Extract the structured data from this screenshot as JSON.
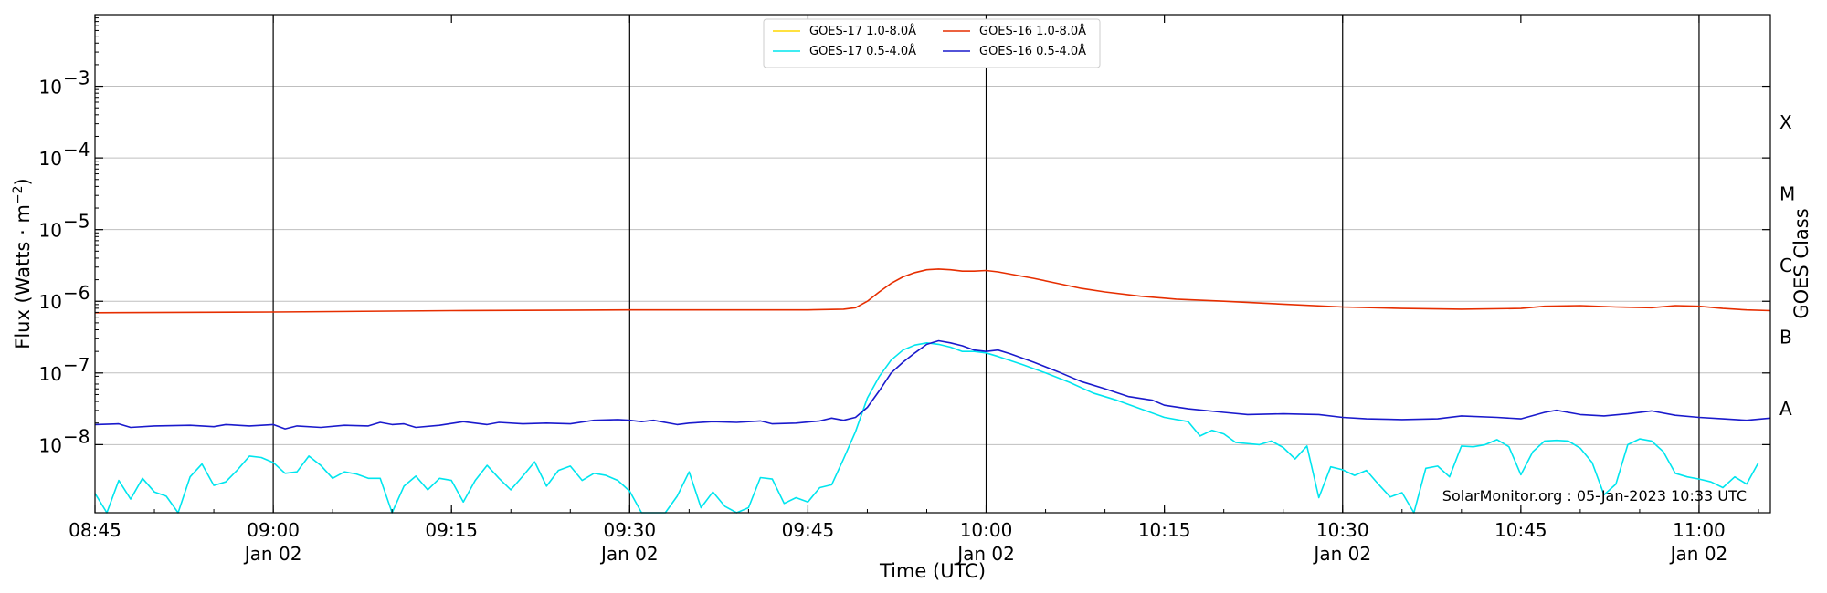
{
  "chart_data": {
    "type": "line",
    "xlabel": "Time (UTC)",
    "ylabel": "Flux (Watts · m",
    "ylabel_sup": "−2",
    "right_label": "GOES Class",
    "x_range_minutes": [
      -15,
      126
    ],
    "y_log_range_exp": [
      -8.95,
      -2.0
    ],
    "x_ticks": [
      {
        "minute": -15,
        "time": "08:45",
        "date": ""
      },
      {
        "minute": 0,
        "time": "09:00",
        "date": "Jan 02"
      },
      {
        "minute": 15,
        "time": "09:15",
        "date": ""
      },
      {
        "minute": 30,
        "time": "09:30",
        "date": "Jan 02"
      },
      {
        "minute": 45,
        "time": "09:45",
        "date": ""
      },
      {
        "minute": 60,
        "time": "10:00",
        "date": "Jan 02"
      },
      {
        "minute": 75,
        "time": "10:15",
        "date": ""
      },
      {
        "minute": 90,
        "time": "10:30",
        "date": "Jan 02"
      },
      {
        "minute": 105,
        "time": "10:45",
        "date": ""
      },
      {
        "minute": 120,
        "time": "11:00",
        "date": "Jan 02"
      }
    ],
    "vertical_lines_minutes": [
      0,
      30,
      60,
      90,
      120
    ],
    "y_ticks": [
      {
        "exp": -8,
        "base": "10",
        "sup": "−8"
      },
      {
        "exp": -7,
        "base": "10",
        "sup": "−7"
      },
      {
        "exp": -6,
        "base": "10",
        "sup": "−6"
      },
      {
        "exp": -5,
        "base": "10",
        "sup": "−5"
      },
      {
        "exp": -4,
        "base": "10",
        "sup": "−4"
      },
      {
        "exp": -3,
        "base": "10",
        "sup": "−3"
      }
    ],
    "goes_classes": [
      {
        "label": "A",
        "exp": -7.5
      },
      {
        "label": "B",
        "exp": -6.5
      },
      {
        "label": "C",
        "exp": -5.5
      },
      {
        "label": "M",
        "exp": -4.5
      },
      {
        "label": "X",
        "exp": -3.5
      }
    ],
    "legend": [
      {
        "name": "GOES-17 1.0-8.0Å",
        "color": "#ffd700"
      },
      {
        "name": "GOES-17 0.5-4.0Å",
        "color": "#00e5ee"
      },
      {
        "name": "GOES-16 1.0-8.0Å",
        "color": "#e62e00"
      },
      {
        "name": "GOES-16 0.5-4.0Å",
        "color": "#1a1acc"
      }
    ],
    "credit": "SolarMonitor.org : 05-Jan-2023 10:33 UTC",
    "series": [
      {
        "name": "GOES-16 1.0-8.0Å",
        "color": "#e62e00",
        "points": [
          [
            -15,
            -6.16
          ],
          [
            0,
            -6.15
          ],
          [
            15,
            -6.13
          ],
          [
            30,
            -6.12
          ],
          [
            45,
            -6.12
          ],
          [
            48,
            -6.11
          ],
          [
            49,
            -6.09
          ],
          [
            50,
            -6.0
          ],
          [
            51,
            -5.87
          ],
          [
            52,
            -5.75
          ],
          [
            53,
            -5.66
          ],
          [
            54,
            -5.6
          ],
          [
            55,
            -5.56
          ],
          [
            56,
            -5.55
          ],
          [
            57,
            -5.56
          ],
          [
            58,
            -5.58
          ],
          [
            59,
            -5.58
          ],
          [
            60,
            -5.57
          ],
          [
            61,
            -5.59
          ],
          [
            62,
            -5.62
          ],
          [
            64,
            -5.68
          ],
          [
            66,
            -5.75
          ],
          [
            68,
            -5.82
          ],
          [
            70,
            -5.87
          ],
          [
            73,
            -5.93
          ],
          [
            76,
            -5.97
          ],
          [
            80,
            -6.0
          ],
          [
            85,
            -6.04
          ],
          [
            90,
            -6.08
          ],
          [
            95,
            -6.1
          ],
          [
            100,
            -6.11
          ],
          [
            105,
            -6.1
          ],
          [
            107,
            -6.07
          ],
          [
            110,
            -6.06
          ],
          [
            113,
            -6.08
          ],
          [
            116,
            -6.09
          ],
          [
            118,
            -6.06
          ],
          [
            120,
            -6.07
          ],
          [
            122,
            -6.1
          ],
          [
            124,
            -6.12
          ],
          [
            126,
            -6.13
          ]
        ]
      },
      {
        "name": "GOES-16 0.5-4.0Å",
        "color": "#1a1acc",
        "points": [
          [
            -15,
            -7.72
          ],
          [
            -13,
            -7.71
          ],
          [
            -12,
            -7.76
          ],
          [
            -10,
            -7.74
          ],
          [
            -7,
            -7.73
          ],
          [
            -5,
            -7.75
          ],
          [
            -4,
            -7.72
          ],
          [
            -2,
            -7.74
          ],
          [
            0,
            -7.72
          ],
          [
            1,
            -7.78
          ],
          [
            2,
            -7.74
          ],
          [
            4,
            -7.76
          ],
          [
            6,
            -7.73
          ],
          [
            8,
            -7.74
          ],
          [
            9,
            -7.69
          ],
          [
            10,
            -7.72
          ],
          [
            11,
            -7.71
          ],
          [
            12,
            -7.76
          ],
          [
            14,
            -7.73
          ],
          [
            16,
            -7.68
          ],
          [
            18,
            -7.72
          ],
          [
            19,
            -7.69
          ],
          [
            21,
            -7.71
          ],
          [
            23,
            -7.7
          ],
          [
            25,
            -7.71
          ],
          [
            27,
            -7.66
          ],
          [
            29,
            -7.65
          ],
          [
            30,
            -7.66
          ],
          [
            31,
            -7.68
          ],
          [
            32,
            -7.66
          ],
          [
            34,
            -7.72
          ],
          [
            35,
            -7.7
          ],
          [
            37,
            -7.68
          ],
          [
            39,
            -7.69
          ],
          [
            41,
            -7.67
          ],
          [
            42,
            -7.71
          ],
          [
            44,
            -7.7
          ],
          [
            46,
            -7.67
          ],
          [
            47,
            -7.63
          ],
          [
            48,
            -7.66
          ],
          [
            49,
            -7.62
          ],
          [
            50,
            -7.48
          ],
          [
            51,
            -7.25
          ],
          [
            52,
            -7.0
          ],
          [
            53,
            -6.85
          ],
          [
            54,
            -6.72
          ],
          [
            55,
            -6.6
          ],
          [
            56,
            -6.55
          ],
          [
            57,
            -6.58
          ],
          [
            58,
            -6.62
          ],
          [
            59,
            -6.68
          ],
          [
            60,
            -6.7
          ],
          [
            61,
            -6.68
          ],
          [
            62,
            -6.73
          ],
          [
            64,
            -6.85
          ],
          [
            66,
            -6.98
          ],
          [
            68,
            -7.12
          ],
          [
            70,
            -7.22
          ],
          [
            72,
            -7.33
          ],
          [
            74,
            -7.38
          ],
          [
            75,
            -7.45
          ],
          [
            77,
            -7.5
          ],
          [
            80,
            -7.55
          ],
          [
            82,
            -7.58
          ],
          [
            85,
            -7.57
          ],
          [
            88,
            -7.58
          ],
          [
            90,
            -7.62
          ],
          [
            92,
            -7.64
          ],
          [
            95,
            -7.65
          ],
          [
            98,
            -7.64
          ],
          [
            100,
            -7.6
          ],
          [
            103,
            -7.62
          ],
          [
            105,
            -7.64
          ],
          [
            107,
            -7.55
          ],
          [
            108,
            -7.52
          ],
          [
            110,
            -7.58
          ],
          [
            112,
            -7.6
          ],
          [
            114,
            -7.57
          ],
          [
            116,
            -7.53
          ],
          [
            118,
            -7.59
          ],
          [
            120,
            -7.62
          ],
          [
            122,
            -7.64
          ],
          [
            124,
            -7.66
          ],
          [
            126,
            -7.63
          ]
        ]
      },
      {
        "name": "GOES-17 0.5-4.0Å",
        "color": "#00e5ee",
        "points": [
          [
            -15,
            -8.68
          ],
          [
            -14,
            -8.95
          ],
          [
            -13,
            -8.5
          ],
          [
            -12,
            -8.76
          ],
          [
            -11,
            -8.47
          ],
          [
            -10,
            -8.66
          ],
          [
            -9,
            -8.72
          ],
          [
            -8,
            -8.95
          ],
          [
            -7,
            -8.45
          ],
          [
            -6,
            -8.27
          ],
          [
            -5,
            -8.57
          ],
          [
            -4,
            -8.52
          ],
          [
            -3,
            -8.35
          ],
          [
            -2,
            -8.16
          ],
          [
            -1,
            -8.18
          ],
          [
            0,
            -8.25
          ],
          [
            1,
            -8.4
          ],
          [
            2,
            -8.38
          ],
          [
            3,
            -8.16
          ],
          [
            4,
            -8.29
          ],
          [
            5,
            -8.47
          ],
          [
            6,
            -8.38
          ],
          [
            7,
            -8.41
          ],
          [
            8,
            -8.47
          ],
          [
            9,
            -8.47
          ],
          [
            10,
            -8.95
          ],
          [
            11,
            -8.58
          ],
          [
            12,
            -8.44
          ],
          [
            13,
            -8.63
          ],
          [
            14,
            -8.47
          ],
          [
            15,
            -8.5
          ],
          [
            16,
            -8.8
          ],
          [
            17,
            -8.5
          ],
          [
            18,
            -8.29
          ],
          [
            19,
            -8.47
          ],
          [
            20,
            -8.63
          ],
          [
            21,
            -8.44
          ],
          [
            22,
            -8.24
          ],
          [
            23,
            -8.58
          ],
          [
            24,
            -8.36
          ],
          [
            25,
            -8.3
          ],
          [
            26,
            -8.5
          ],
          [
            27,
            -8.4
          ],
          [
            28,
            -8.43
          ],
          [
            29,
            -8.5
          ],
          [
            30,
            -8.65
          ],
          [
            31,
            -8.95
          ],
          [
            33,
            -8.95
          ],
          [
            34,
            -8.72
          ],
          [
            35,
            -8.38
          ],
          [
            36,
            -8.88
          ],
          [
            37,
            -8.66
          ],
          [
            38,
            -8.86
          ],
          [
            39,
            -8.95
          ],
          [
            40,
            -8.88
          ],
          [
            41,
            -8.46
          ],
          [
            42,
            -8.48
          ],
          [
            43,
            -8.82
          ],
          [
            44,
            -8.74
          ],
          [
            45,
            -8.8
          ],
          [
            46,
            -8.6
          ],
          [
            47,
            -8.56
          ],
          [
            48,
            -8.2
          ],
          [
            49,
            -7.82
          ],
          [
            50,
            -7.35
          ],
          [
            51,
            -7.05
          ],
          [
            52,
            -6.82
          ],
          [
            53,
            -6.68
          ],
          [
            54,
            -6.61
          ],
          [
            55,
            -6.58
          ],
          [
            56,
            -6.6
          ],
          [
            57,
            -6.64
          ],
          [
            58,
            -6.7
          ],
          [
            59,
            -6.7
          ],
          [
            60,
            -6.72
          ],
          [
            61,
            -6.77
          ],
          [
            63,
            -6.88
          ],
          [
            65,
            -7.0
          ],
          [
            67,
            -7.13
          ],
          [
            69,
            -7.28
          ],
          [
            71,
            -7.38
          ],
          [
            73,
            -7.5
          ],
          [
            75,
            -7.62
          ],
          [
            77,
            -7.68
          ],
          [
            78,
            -7.88
          ],
          [
            79,
            -7.8
          ],
          [
            80,
            -7.85
          ],
          [
            81,
            -7.97
          ],
          [
            83,
            -8.0
          ],
          [
            84,
            -7.95
          ],
          [
            85,
            -8.04
          ],
          [
            86,
            -8.2
          ],
          [
            87,
            -8.02
          ],
          [
            88,
            -8.74
          ],
          [
            89,
            -8.31
          ],
          [
            90,
            -8.35
          ],
          [
            91,
            -8.43
          ],
          [
            92,
            -8.36
          ],
          [
            93,
            -8.55
          ],
          [
            94,
            -8.73
          ],
          [
            95,
            -8.67
          ],
          [
            96,
            -8.95
          ],
          [
            97,
            -8.33
          ],
          [
            98,
            -8.3
          ],
          [
            99,
            -8.45
          ],
          [
            100,
            -8.02
          ],
          [
            101,
            -8.03
          ],
          [
            102,
            -8.0
          ],
          [
            103,
            -7.93
          ],
          [
            104,
            -8.03
          ],
          [
            105,
            -8.42
          ],
          [
            106,
            -8.1
          ],
          [
            107,
            -7.95
          ],
          [
            108,
            -7.94
          ],
          [
            109,
            -7.95
          ],
          [
            110,
            -8.05
          ],
          [
            111,
            -8.25
          ],
          [
            112,
            -8.7
          ],
          [
            113,
            -8.55
          ],
          [
            114,
            -8.0
          ],
          [
            115,
            -7.92
          ],
          [
            116,
            -7.95
          ],
          [
            117,
            -8.1
          ],
          [
            118,
            -8.4
          ],
          [
            119,
            -8.45
          ],
          [
            120,
            -8.48
          ],
          [
            121,
            -8.52
          ],
          [
            122,
            -8.6
          ],
          [
            123,
            -8.45
          ],
          [
            124,
            -8.55
          ],
          [
            125,
            -8.25
          ]
        ]
      },
      {
        "name": "GOES-17 1.0-8.0Å",
        "color": "#ffd700",
        "points": []
      }
    ]
  }
}
